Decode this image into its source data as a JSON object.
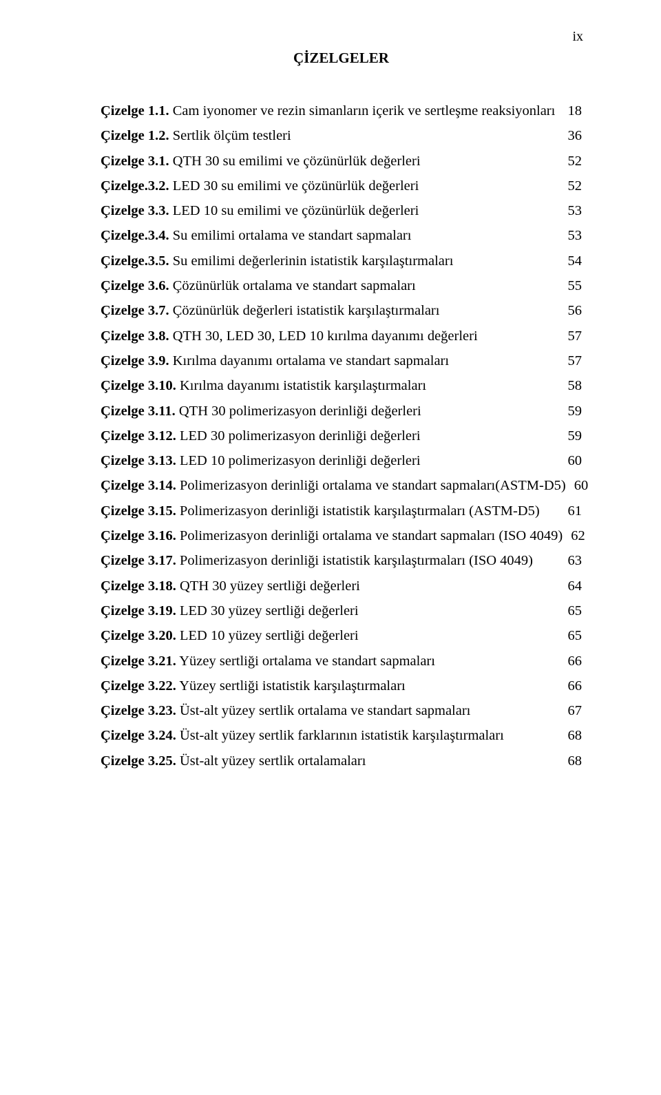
{
  "pageNumber": "ix",
  "title": "ÇİZELGELER",
  "entries": [
    {
      "label": "Çizelge 1.1.",
      "text": " Cam iyonomer ve rezin simanların içerik ve sertleşme reaksiyonları",
      "page": "18"
    },
    {
      "label": "Çizelge 1.2.",
      "text": " Sertlik ölçüm testleri",
      "page": "36"
    },
    {
      "label": "Çizelge 3.1.",
      "text": " QTH 30 su emilimi ve çözünürlük değerleri",
      "page": "52"
    },
    {
      "label": "Çizelge.3.2.",
      "text": " LED 30 su emilimi ve çözünürlük değerleri",
      "page": "52"
    },
    {
      "label": "Çizelge 3.3.",
      "text": " LED 10 su emilimi ve çözünürlük değerleri",
      "page": "53"
    },
    {
      "label": "Çizelge.3.4.",
      "text": " Su emilimi ortalama ve standart sapmaları",
      "page": "53"
    },
    {
      "label": "Çizelge.3.5.",
      "text": " Su emilimi değerlerinin istatistik karşılaştırmaları",
      "page": "54"
    },
    {
      "label": "Çizelge 3.6.",
      "text": " Çözünürlük ortalama ve standart sapmaları",
      "page": "55"
    },
    {
      "label": "Çizelge 3.7.",
      "text": " Çözünürlük değerleri istatistik karşılaştırmaları",
      "page": "56"
    },
    {
      "label": "Çizelge 3.8.",
      "text": " QTH 30, LED 30, LED 10 kırılma dayanımı değerleri",
      "page": "57"
    },
    {
      "label": "Çizelge 3.9.",
      "text": " Kırılma dayanımı ortalama ve standart sapmaları",
      "page": "57"
    },
    {
      "label": "Çizelge 3.10.",
      "text": " Kırılma dayanımı istatistik karşılaştırmaları",
      "page": "58"
    },
    {
      "label": "Çizelge 3.11.",
      "text": " QTH 30 polimerizasyon derinliği değerleri",
      "page": "59"
    },
    {
      "label": "Çizelge 3.12.",
      "text": " LED 30 polimerizasyon derinliği değerleri",
      "page": "59"
    },
    {
      "label": "Çizelge 3.13.",
      "text": " LED 10 polimerizasyon derinliği değerleri",
      "page": "60"
    },
    {
      "label": "Çizelge 3.14.",
      "text": " Polimerizasyon derinliği ortalama ve standart sapmaları(ASTM-D5)",
      "page": "60"
    },
    {
      "label": "Çizelge 3.15.",
      "text": " Polimerizasyon derinliği istatistik karşılaştırmaları (ASTM-D5)",
      "page": "61"
    },
    {
      "label": "Çizelge 3.16.",
      "text": " Polimerizasyon derinliği ortalama ve standart sapmaları (ISO 4049)",
      "page": "62"
    },
    {
      "label": "Çizelge 3.17.",
      "text": " Polimerizasyon derinliği istatistik karşılaştırmaları (ISO 4049)",
      "page": "63"
    },
    {
      "label": "Çizelge 3.18.",
      "text": " QTH 30 yüzey sertliği değerleri",
      "page": "64"
    },
    {
      "label": "Çizelge 3.19.",
      "text": " LED 30 yüzey sertliği değerleri",
      "page": "65"
    },
    {
      "label": "Çizelge 3.20.",
      "text": " LED 10 yüzey sertliği değerleri",
      "page": "65"
    },
    {
      "label": "Çizelge 3.21.",
      "text": " Yüzey sertliği ortalama ve standart sapmaları",
      "page": "66"
    },
    {
      "label": "Çizelge 3.22.",
      "text": " Yüzey sertliği istatistik karşılaştırmaları",
      "page": "66"
    },
    {
      "label": "Çizelge 3.23.",
      "text": " Üst-alt yüzey sertlik ortalama ve standart sapmaları",
      "page": "67"
    },
    {
      "label": "Çizelge 3.24.",
      "text": " Üst-alt yüzey sertlik farklarının istatistik karşılaştırmaları",
      "page": "68"
    },
    {
      "label": "Çizelge 3.25.",
      "text": " Üst-alt yüzey sertlik ortalamaları",
      "page": "68"
    }
  ]
}
